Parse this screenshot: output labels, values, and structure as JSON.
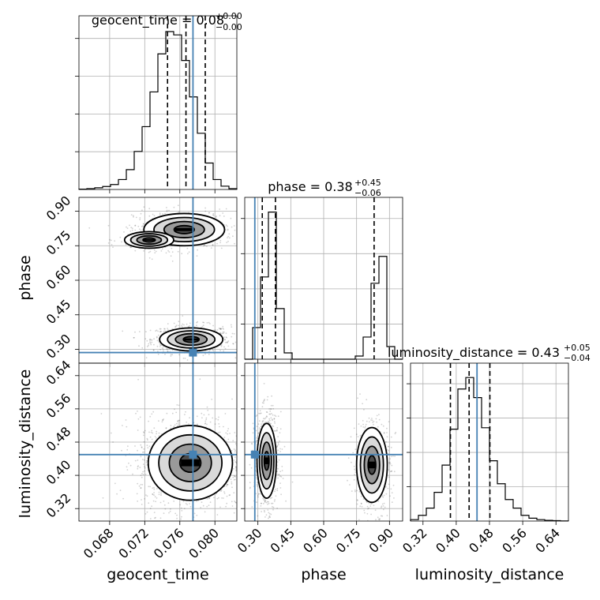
{
  "chart_data": {
    "type": "corner",
    "truth_color": "#4682b4",
    "hist_color": "#000000",
    "grid": true,
    "parameters": [
      {
        "name": "geocent_time",
        "label": "geocent_time",
        "range": [
          0.0645,
          0.0825
        ],
        "ticks": [
          0.068,
          0.072,
          0.076,
          0.08
        ],
        "tick_labels": [
          "0.068",
          "0.072",
          "0.076",
          "0.080"
        ],
        "truth": 0.0775,
        "title": {
          "prefix": "geocent_time = ",
          "value": "0.08",
          "plus": "+0.00",
          "minus": "−0.00"
        },
        "quantiles": [
          0.0746,
          0.0767,
          0.0789
        ],
        "hist": {
          "edges": [
            0.0645,
            0.0654,
            0.0663,
            0.0672,
            0.0681,
            0.069,
            0.0699,
            0.0708,
            0.0717,
            0.0726,
            0.0735,
            0.0744,
            0.0753,
            0.0762,
            0.0771,
            0.078,
            0.0789,
            0.0798,
            0.0807,
            0.0816,
            0.0825
          ],
          "counts": [
            2,
            5,
            10,
            18,
            30,
            60,
            120,
            230,
            380,
            590,
            820,
            955,
            935,
            780,
            560,
            340,
            160,
            60,
            20,
            5
          ]
        }
      },
      {
        "name": "phase",
        "label": "phase",
        "range": [
          0.24,
          0.96
        ],
        "ticks": [
          0.3,
          0.45,
          0.6,
          0.75,
          0.9
        ],
        "tick_labels": [
          "0.30",
          "0.45",
          "0.60",
          "0.75",
          "0.90"
        ],
        "truth": 0.286,
        "title": {
          "prefix": "phase = ",
          "value": "0.38",
          "plus": "+0.45",
          "minus": "−0.06"
        },
        "quantiles": [
          0.32,
          0.38,
          0.83
        ],
        "hist": {
          "edges": [
            0.24,
            0.276,
            0.312,
            0.348,
            0.384,
            0.42,
            0.456,
            0.492,
            0.528,
            0.564,
            0.6,
            0.636,
            0.672,
            0.708,
            0.744,
            0.78,
            0.816,
            0.852,
            0.888,
            0.924,
            0.96
          ],
          "counts": [
            0,
            200,
            520,
            930,
            320,
            40,
            0,
            0,
            0,
            0,
            0,
            0,
            0,
            0,
            20,
            140,
            480,
            650,
            80,
            0
          ]
        }
      },
      {
        "name": "luminosity_distance",
        "label": "luminosity_distance",
        "range": [
          0.29,
          0.67
        ],
        "ticks": [
          0.32,
          0.4,
          0.48,
          0.56,
          0.64
        ],
        "tick_labels": [
          "0.32",
          "0.40",
          "0.48",
          "0.56",
          "0.64"
        ],
        "truth": 0.45,
        "title": {
          "prefix": "luminosity_distance = ",
          "value": "0.43",
          "plus": "+0.05",
          "minus": "−0.04"
        },
        "quantiles": [
          0.386,
          0.431,
          0.481
        ],
        "hist": {
          "edges": [
            0.29,
            0.309,
            0.328,
            0.347,
            0.366,
            0.385,
            0.404,
            0.423,
            0.442,
            0.461,
            0.48,
            0.499,
            0.518,
            0.537,
            0.556,
            0.575,
            0.594,
            0.613,
            0.632,
            0.651,
            0.67
          ],
          "counts": [
            10,
            40,
            90,
            200,
            390,
            640,
            920,
            1000,
            860,
            650,
            420,
            260,
            150,
            90,
            40,
            20,
            10,
            5,
            3,
            1
          ]
        }
      }
    ],
    "pairs": [
      {
        "x": "geocent_time",
        "y": "phase",
        "clusters": [
          {
            "mean": [
              0.0773,
              0.343
            ],
            "sd": [
              0.0018,
              0.025
            ],
            "weight": 0.55
          },
          {
            "mean": [
              0.0765,
              0.82
            ],
            "sd": [
              0.0023,
              0.035
            ],
            "weight": 0.3
          },
          {
            "mean": [
              0.0725,
              0.775
            ],
            "sd": [
              0.0014,
              0.018
            ],
            "weight": 0.15
          }
        ]
      },
      {
        "x": "geocent_time",
        "y": "luminosity_distance",
        "clusters": [
          {
            "mean": [
              0.0772,
              0.43
            ],
            "sd": [
              0.0024,
              0.045
            ],
            "weight": 1.0
          }
        ]
      },
      {
        "x": "phase",
        "y": "luminosity_distance",
        "clusters": [
          {
            "mean": [
              0.34,
              0.435
            ],
            "sd": [
              0.022,
              0.045
            ],
            "weight": 0.6
          },
          {
            "mean": [
              0.82,
              0.425
            ],
            "sd": [
              0.035,
              0.045
            ],
            "weight": 0.4
          }
        ]
      }
    ]
  }
}
